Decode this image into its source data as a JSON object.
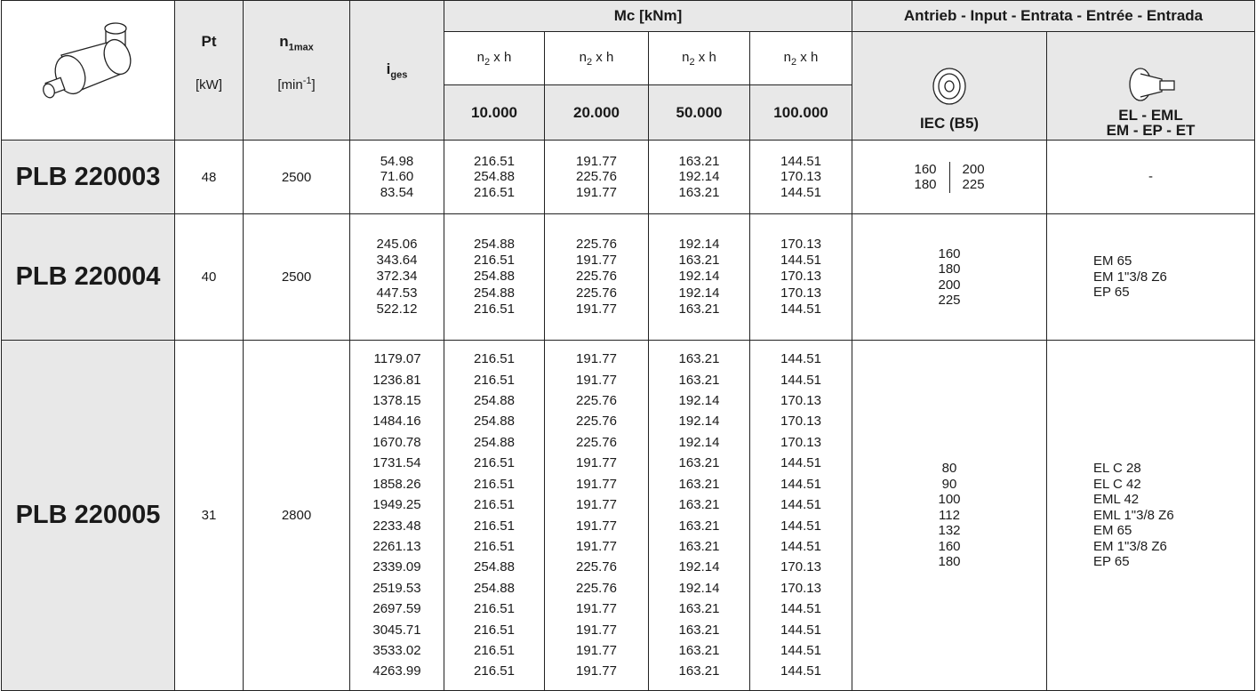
{
  "header": {
    "pt": "Pt",
    "pt_unit": "[kW]",
    "n1max": {
      "main": "n",
      "sub": "1max"
    },
    "n1max_unit": {
      "before": "[min",
      "sup": "-1",
      "after": "]"
    },
    "iges": {
      "main": "i",
      "sub": "ges"
    },
    "mc": "Mc [kNm]",
    "mc_columns": [
      {
        "label": {
          "main": "n",
          "sub": "2",
          "after": " x h"
        },
        "hours": "10.000"
      },
      {
        "label": {
          "main": "n",
          "sub": "2",
          "after": " x h"
        },
        "hours": "20.000"
      },
      {
        "label": {
          "main": "n",
          "sub": "2",
          "after": " x h"
        },
        "hours": "50.000"
      },
      {
        "label": {
          "main": "n",
          "sub": "2",
          "after": " x h"
        },
        "hours": "100.000"
      }
    ],
    "input": "Antrieb - Input - Entrata - Entrée - Entrada",
    "iec": "IEC (B5)",
    "el": [
      "EL - EML",
      "EM - EP - ET"
    ]
  },
  "rows": [
    {
      "model": "PLB 220003",
      "pt": "48",
      "n1max": "2500",
      "ratios": [
        "54.98",
        "71.60",
        "83.54"
      ],
      "mc": [
        [
          "216.51",
          "191.77",
          "163.21",
          "144.51"
        ],
        [
          "254.88",
          "225.76",
          "192.14",
          "170.13"
        ],
        [
          "216.51",
          "191.77",
          "163.21",
          "144.51"
        ]
      ],
      "iec": [
        [
          "160",
          "200"
        ],
        [
          "180",
          "225"
        ]
      ],
      "input": [
        "-"
      ]
    },
    {
      "model": "PLB 220004",
      "pt": "40",
      "n1max": "2500",
      "ratios": [
        "245.06",
        "343.64",
        "372.34",
        "447.53",
        "522.12"
      ],
      "mc": [
        [
          "254.88",
          "225.76",
          "192.14",
          "170.13"
        ],
        [
          "216.51",
          "191.77",
          "163.21",
          "144.51"
        ],
        [
          "254.88",
          "225.76",
          "192.14",
          "170.13"
        ],
        [
          "254.88",
          "225.76",
          "192.14",
          "170.13"
        ],
        [
          "216.51",
          "191.77",
          "163.21",
          "144.51"
        ]
      ],
      "iec": [
        "160",
        "180",
        "200",
        "225"
      ],
      "input": [
        "EM 65",
        "EM 1\"3/8 Z6",
        "EP 65"
      ]
    },
    {
      "model": "PLB 220005",
      "pt": "31",
      "n1max": "2800",
      "ratios": [
        "1179.07",
        "1236.81",
        "1378.15",
        "1484.16",
        "1670.78",
        "1731.54",
        "1858.26",
        "1949.25",
        "2233.48",
        "2261.13",
        "2339.09",
        "2519.53",
        "2697.59",
        "3045.71",
        "3533.02",
        "4263.99"
      ],
      "mc": [
        [
          "216.51",
          "191.77",
          "163.21",
          "144.51"
        ],
        [
          "216.51",
          "191.77",
          "163.21",
          "144.51"
        ],
        [
          "254.88",
          "225.76",
          "192.14",
          "170.13"
        ],
        [
          "254.88",
          "225.76",
          "192.14",
          "170.13"
        ],
        [
          "254.88",
          "225.76",
          "192.14",
          "170.13"
        ],
        [
          "216.51",
          "191.77",
          "163.21",
          "144.51"
        ],
        [
          "216.51",
          "191.77",
          "163.21",
          "144.51"
        ],
        [
          "216.51",
          "191.77",
          "163.21",
          "144.51"
        ],
        [
          "216.51",
          "191.77",
          "163.21",
          "144.51"
        ],
        [
          "216.51",
          "191.77",
          "163.21",
          "144.51"
        ],
        [
          "254.88",
          "225.76",
          "192.14",
          "170.13"
        ],
        [
          "254.88",
          "225.76",
          "192.14",
          "170.13"
        ],
        [
          "216.51",
          "191.77",
          "163.21",
          "144.51"
        ],
        [
          "216.51",
          "191.77",
          "163.21",
          "144.51"
        ],
        [
          "216.51",
          "191.77",
          "163.21",
          "144.51"
        ],
        [
          "216.51",
          "191.77",
          "163.21",
          "144.51"
        ]
      ],
      "iec": [
        "80",
        "90",
        "100",
        "112",
        "132",
        "160",
        "180"
      ],
      "input": [
        "EL C 28",
        "EL C 42",
        "EML 42",
        "EML 1\"3/8 Z6",
        "EM 65",
        "EM 1\"3/8 Z6",
        "EP 65"
      ]
    }
  ]
}
